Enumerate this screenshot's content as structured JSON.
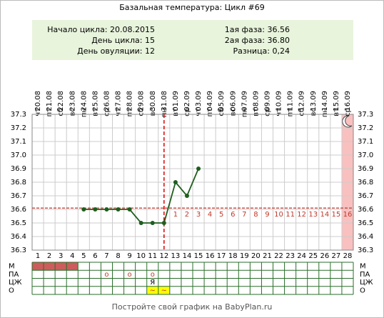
{
  "chart_data": {
    "type": "line",
    "title": "Базальная температура: Цикл #69",
    "info_left": [
      "Начало цикла: 20.08.2015",
      "День цикла: 15",
      "День овуляции: 12"
    ],
    "info_right": [
      "1ая фаза: 36.56",
      "2ая фаза: 36.80",
      "Разница: 0,24"
    ],
    "categories": [
      "20.08",
      "21.08",
      "22.08",
      "23.08",
      "24.08",
      "25.08",
      "26.08",
      "27.08",
      "28.08",
      "29.08",
      "30.08",
      "31.08",
      "01.09",
      "02.09",
      "03.09",
      "04.09",
      "05.09",
      "06.09",
      "07.09",
      "08.09",
      "09.09",
      "10.09",
      "11.09",
      "12.09",
      "13.09",
      "14.09",
      "15.09",
      "16.09"
    ],
    "weekdays": [
      "чт",
      "пт",
      "сб",
      "вс",
      "пн",
      "вт",
      "ср",
      "чт",
      "пт",
      "сб",
      "вс",
      "пн",
      "вт",
      "ср",
      "чт",
      "пт",
      "сб",
      "вс",
      "пн",
      "вт",
      "ср",
      "чт",
      "пт",
      "сб",
      "вс",
      "пн",
      "вт",
      "ср"
    ],
    "days": [
      1,
      2,
      3,
      4,
      5,
      6,
      7,
      8,
      9,
      10,
      11,
      12,
      13,
      14,
      15,
      16,
      17,
      18,
      19,
      20,
      21,
      22,
      23,
      24,
      25,
      26,
      27,
      28
    ],
    "values": [
      null,
      null,
      null,
      null,
      36.6,
      36.6,
      36.6,
      36.6,
      36.6,
      36.5,
      36.5,
      36.5,
      36.8,
      36.7,
      36.9,
      null,
      null,
      null,
      null,
      null,
      null,
      null,
      null,
      null,
      null,
      null,
      null,
      null
    ],
    "color": "#1e5e1e",
    "ylim": [
      36.3,
      37.3
    ],
    "yticks": [
      36.3,
      36.4,
      36.5,
      36.6,
      36.7,
      36.8,
      36.9,
      {
        "value": 37.0,
        "label": "37.0"
      },
      37.1,
      37.2,
      37.3
    ],
    "grid": true,
    "coverline": 36.61,
    "ovulation_day": 12,
    "phase2_numbers": [
      1,
      2,
      3,
      4,
      5,
      6,
      7,
      8,
      9,
      10,
      11,
      12,
      13,
      14,
      15,
      16
    ],
    "highlight_day": 28,
    "rows": [
      {
        "label": "М",
        "filled": [
          1,
          2,
          3,
          4
        ],
        "color": "#cd5c5c"
      },
      {
        "label": "ПА",
        "marks": [
          {
            "day": 7,
            "text": "о"
          },
          {
            "day": 9,
            "text": "о"
          },
          {
            "day": 11,
            "text": "о"
          }
        ]
      },
      {
        "label": "ЦЖ",
        "marks": [
          {
            "day": 11,
            "text": "Я"
          }
        ]
      },
      {
        "label": "О",
        "filled": [
          11,
          12
        ],
        "color": "#ffff00",
        "marks": [
          {
            "day": 11,
            "text": "~"
          },
          {
            "day": 12,
            "text": "~"
          }
        ]
      }
    ],
    "footer": "Постройте свой график на BabyPlan.ru"
  }
}
